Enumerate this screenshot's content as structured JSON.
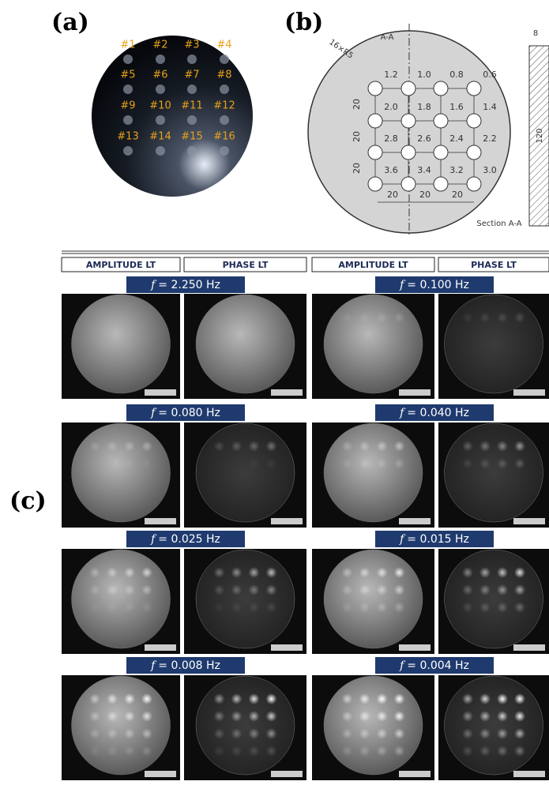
{
  "panels": {
    "a": {
      "label": "(a)",
      "defects": [
        "#1",
        "#2",
        "#3",
        "#4",
        "#5",
        "#6",
        "#7",
        "#8",
        "#9",
        "#10",
        "#11",
        "#12",
        "#13",
        "#14",
        "#15",
        "#16"
      ]
    },
    "b": {
      "label": "(b)",
      "section_marker": "A-A",
      "hole_note": "16×R5",
      "depths": [
        "1.2",
        "1.0",
        "0.8",
        "0.6",
        "2.0",
        "1.8",
        "1.6",
        "1.4",
        "2.8",
        "2.6",
        "2.4",
        "2.2",
        "3.6",
        "3.4",
        "3.2",
        "3.0"
      ],
      "dim_vertical": [
        "20",
        "20",
        "20"
      ],
      "dim_horizontal": [
        "20",
        "20",
        "20"
      ],
      "thickness": "8",
      "height": "120",
      "section_label": "Section A-A"
    },
    "c": {
      "label": "(c)",
      "headers": [
        "AMPLITUDE LT",
        "PHASE LT",
        "AMPLITUDE LT",
        "PHASE LT"
      ],
      "frequencies": [
        {
          "symbol": "f",
          "text": "= 2.250 Hz"
        },
        {
          "symbol": "f",
          "text": "= 0.100 Hz"
        },
        {
          "symbol": "f",
          "text": "= 0.080 Hz"
        },
        {
          "symbol": "f",
          "text": "= 0.040 Hz"
        },
        {
          "symbol": "f",
          "text": "= 0.025 Hz"
        },
        {
          "symbol": "f",
          "text": "= 0.015 Hz"
        },
        {
          "symbol": "f",
          "text": "= 0.008 Hz"
        },
        {
          "symbol": "f",
          "text": "= 0.004 Hz"
        }
      ]
    }
  }
}
